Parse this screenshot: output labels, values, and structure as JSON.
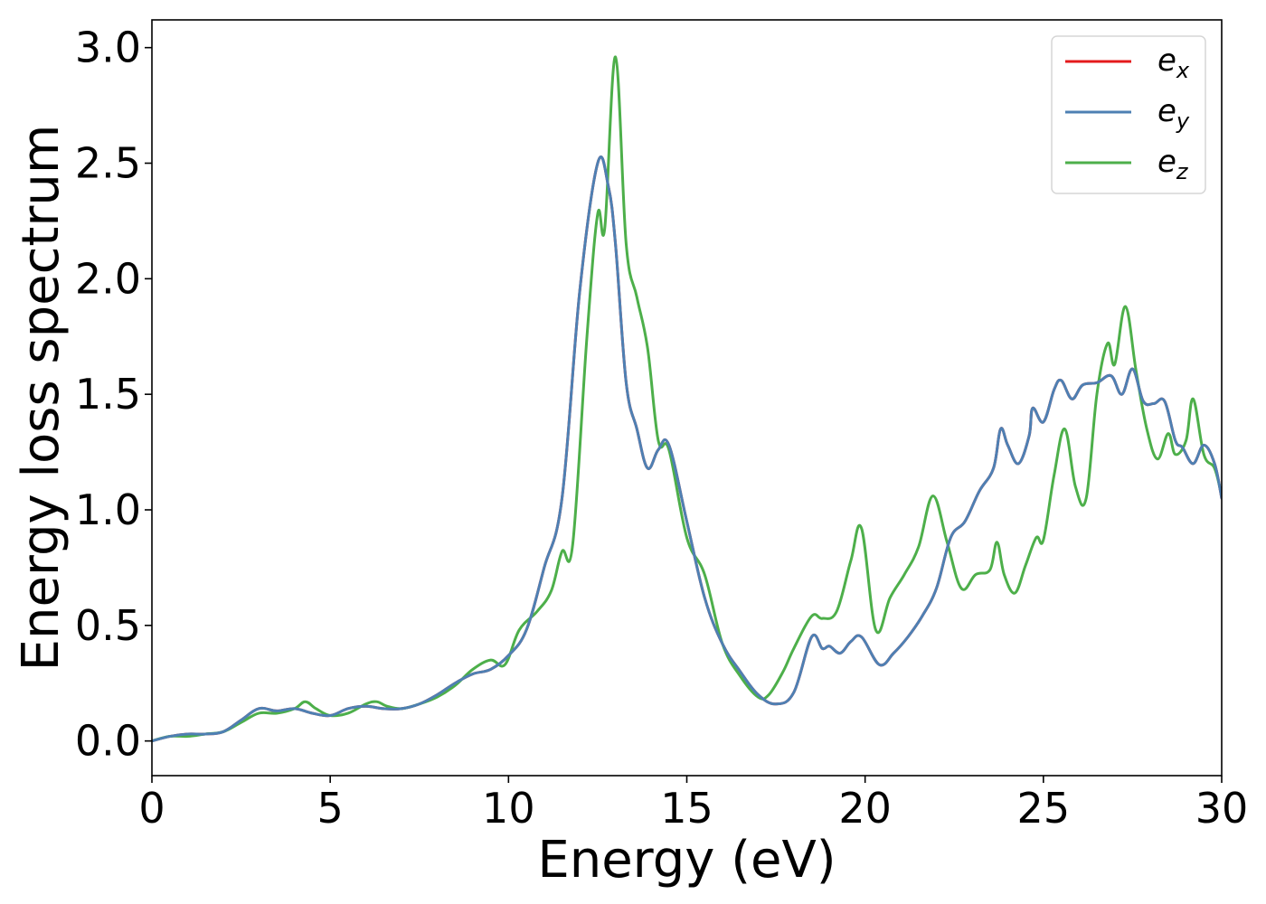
{
  "chart_data": {
    "type": "line",
    "xlabel": "Energy (eV)",
    "ylabel": "Energy loss spectrum",
    "xlim": [
      0,
      30
    ],
    "ylim": [
      -0.15,
      3.12
    ],
    "x_ticks": [
      {
        "value": 0,
        "label": "0"
      },
      {
        "value": 5,
        "label": "5"
      },
      {
        "value": 10,
        "label": "10"
      },
      {
        "value": 15,
        "label": "15"
      },
      {
        "value": 20,
        "label": "20"
      },
      {
        "value": 25,
        "label": "25"
      },
      {
        "value": 30,
        "label": "30"
      }
    ],
    "y_ticks": [
      {
        "value": 0.0,
        "label": "0.0"
      },
      {
        "value": 0.5,
        "label": "0.5"
      },
      {
        "value": 1.0,
        "label": "1.0"
      },
      {
        "value": 1.5,
        "label": "1.5"
      },
      {
        "value": 2.0,
        "label": "2.0"
      },
      {
        "value": 2.5,
        "label": "2.5"
      },
      {
        "value": 3.0,
        "label": "3.0"
      }
    ],
    "grid": false,
    "legend_position": "top-right",
    "series": [
      {
        "name": "e_x",
        "legend_base": "e",
        "legend_sub": "x",
        "color": "#e41a1c",
        "x": [
          0,
          0.5,
          1,
          1.5,
          2,
          2.5,
          3,
          3.5,
          4,
          4.5,
          5,
          5.5,
          6,
          6.5,
          7,
          7.5,
          8,
          8.5,
          9,
          9.5,
          10,
          10.5,
          11,
          11.5,
          12,
          12.5,
          12.8,
          13,
          13.3,
          13.6,
          13.9,
          14.2,
          14.5,
          15,
          15.5,
          16,
          16.5,
          17,
          17.5,
          18,
          18.5,
          18.8,
          19,
          19.3,
          19.6,
          19.9,
          20.4,
          20.8,
          21.2,
          21.6,
          22,
          22.4,
          22.8,
          23.2,
          23.6,
          23.8,
          24,
          24.3,
          24.6,
          24.7,
          25,
          25.3,
          25.5,
          25.8,
          26.1,
          26.5,
          26.9,
          27.2,
          27.5,
          27.8,
          28.1,
          28.4,
          28.7,
          28.9,
          29.2,
          29.5,
          29.8,
          30
        ],
        "values": [
          0.0,
          0.02,
          0.03,
          0.03,
          0.04,
          0.09,
          0.14,
          0.13,
          0.14,
          0.12,
          0.11,
          0.14,
          0.15,
          0.14,
          0.14,
          0.16,
          0.2,
          0.25,
          0.29,
          0.31,
          0.37,
          0.48,
          0.75,
          1.05,
          1.95,
          2.5,
          2.4,
          2.15,
          1.55,
          1.35,
          1.18,
          1.26,
          1.28,
          0.95,
          0.62,
          0.42,
          0.3,
          0.2,
          0.16,
          0.21,
          0.45,
          0.4,
          0.41,
          0.38,
          0.43,
          0.45,
          0.33,
          0.38,
          0.45,
          0.54,
          0.66,
          0.88,
          0.95,
          1.08,
          1.18,
          1.35,
          1.28,
          1.2,
          1.32,
          1.44,
          1.38,
          1.52,
          1.56,
          1.48,
          1.54,
          1.55,
          1.58,
          1.5,
          1.61,
          1.47,
          1.46,
          1.47,
          1.3,
          1.27,
          1.2,
          1.28,
          1.2,
          1.05
        ]
      },
      {
        "name": "e_y",
        "legend_base": "e",
        "legend_sub": "y",
        "color": "#4e80b3",
        "x": [
          0,
          0.5,
          1,
          1.5,
          2,
          2.5,
          3,
          3.5,
          4,
          4.5,
          5,
          5.5,
          6,
          6.5,
          7,
          7.5,
          8,
          8.5,
          9,
          9.5,
          10,
          10.5,
          11,
          11.5,
          12,
          12.5,
          12.8,
          13,
          13.3,
          13.6,
          13.9,
          14.2,
          14.5,
          15,
          15.5,
          16,
          16.5,
          17,
          17.5,
          18,
          18.5,
          18.8,
          19,
          19.3,
          19.6,
          19.9,
          20.4,
          20.8,
          21.2,
          21.6,
          22,
          22.4,
          22.8,
          23.2,
          23.6,
          23.8,
          24,
          24.3,
          24.6,
          24.7,
          25,
          25.3,
          25.5,
          25.8,
          26.1,
          26.5,
          26.9,
          27.2,
          27.5,
          27.8,
          28.1,
          28.4,
          28.7,
          28.9,
          29.2,
          29.5,
          29.8,
          30
        ],
        "values": [
          0.0,
          0.02,
          0.03,
          0.03,
          0.04,
          0.09,
          0.14,
          0.13,
          0.14,
          0.12,
          0.11,
          0.14,
          0.15,
          0.14,
          0.14,
          0.16,
          0.2,
          0.25,
          0.29,
          0.31,
          0.37,
          0.48,
          0.75,
          1.05,
          1.95,
          2.5,
          2.4,
          2.15,
          1.55,
          1.35,
          1.18,
          1.26,
          1.28,
          0.95,
          0.62,
          0.42,
          0.3,
          0.2,
          0.16,
          0.21,
          0.45,
          0.4,
          0.41,
          0.38,
          0.43,
          0.45,
          0.33,
          0.38,
          0.45,
          0.54,
          0.66,
          0.88,
          0.95,
          1.08,
          1.18,
          1.35,
          1.28,
          1.2,
          1.32,
          1.44,
          1.38,
          1.52,
          1.56,
          1.48,
          1.54,
          1.55,
          1.58,
          1.5,
          1.61,
          1.47,
          1.46,
          1.47,
          1.3,
          1.27,
          1.2,
          1.28,
          1.2,
          1.05
        ]
      },
      {
        "name": "e_z",
        "legend_base": "e",
        "legend_sub": "z",
        "color": "#4daf4a",
        "x": [
          0,
          0.5,
          1,
          1.5,
          2,
          2.5,
          3,
          3.5,
          4,
          4.3,
          4.6,
          5,
          5.5,
          6,
          6.3,
          6.6,
          7,
          7.5,
          8,
          8.5,
          9,
          9.5,
          9.9,
          10.3,
          10.8,
          11.2,
          11.5,
          11.8,
          12.2,
          12.5,
          12.7,
          13.0,
          13.3,
          13.6,
          13.9,
          14.2,
          14.5,
          15,
          15.5,
          16,
          16.5,
          17,
          17.3,
          17.7,
          18,
          18.5,
          18.8,
          19.2,
          19.6,
          19.9,
          20.3,
          20.7,
          21.1,
          21.5,
          21.9,
          22.3,
          22.7,
          23.1,
          23.5,
          23.7,
          23.9,
          24.2,
          24.5,
          24.8,
          25.0,
          25.3,
          25.6,
          25.9,
          26.2,
          26.5,
          26.8,
          27.0,
          27.3,
          27.6,
          27.9,
          28.2,
          28.5,
          28.7,
          29.0,
          29.2,
          29.5,
          29.8,
          30
        ],
        "values": [
          0.0,
          0.02,
          0.02,
          0.03,
          0.04,
          0.08,
          0.12,
          0.12,
          0.14,
          0.17,
          0.14,
          0.11,
          0.12,
          0.16,
          0.17,
          0.15,
          0.14,
          0.16,
          0.19,
          0.24,
          0.31,
          0.35,
          0.33,
          0.48,
          0.56,
          0.65,
          0.82,
          0.85,
          1.75,
          2.28,
          2.22,
          2.96,
          2.15,
          1.92,
          1.7,
          1.3,
          1.26,
          0.88,
          0.72,
          0.42,
          0.28,
          0.19,
          0.2,
          0.3,
          0.4,
          0.54,
          0.53,
          0.56,
          0.78,
          0.92,
          0.48,
          0.62,
          0.72,
          0.84,
          1.06,
          0.86,
          0.66,
          0.72,
          0.74,
          0.86,
          0.72,
          0.64,
          0.76,
          0.88,
          0.87,
          1.15,
          1.35,
          1.1,
          1.05,
          1.5,
          1.72,
          1.63,
          1.88,
          1.6,
          1.35,
          1.22,
          1.33,
          1.24,
          1.3,
          1.48,
          1.24,
          1.18,
          1.06
        ]
      }
    ]
  }
}
